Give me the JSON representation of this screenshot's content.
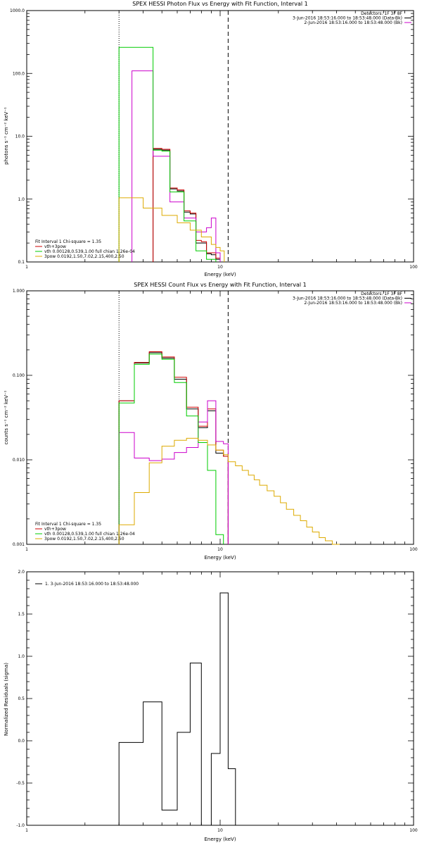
{
  "chart_data": [
    {
      "type": "line",
      "title": "SPEX HESSI Photon Flux vs Energy with Fit Function, Interval 1",
      "xlabel": "Energy (keV)",
      "ylabel": "photons s⁻¹ cm⁻² keV⁻¹",
      "xscale": "log",
      "yscale": "log",
      "xlim": [
        1,
        100
      ],
      "ylim": [
        0.1,
        1000
      ],
      "xticks": [
        {
          "v": 1,
          "label": "1"
        },
        {
          "v": 10,
          "label": "10"
        },
        {
          "v": 100,
          "label": "100"
        }
      ],
      "yticks": [
        {
          "v": 0.1,
          "label": "0.1"
        },
        {
          "v": 1,
          "label": "1.0"
        },
        {
          "v": 10,
          "label": "10.0"
        },
        {
          "v": 100,
          "label": "100.0"
        },
        {
          "v": 1000,
          "label": "1000.0"
        }
      ],
      "vlines": [
        {
          "x": 3.0,
          "style": "dotted"
        },
        {
          "x": 11.0,
          "style": "dashed"
        }
      ],
      "legend_top": [
        {
          "text": "Detectors: 1F 3F 8F",
          "color": ""
        },
        {
          "text": "3-Jun-2016 18:53:16.000 to 18:53:48.000 (Data-Bk)",
          "color": "#000000"
        },
        {
          "text": "2-Jun-2016 18:53:16.000 to 18:53:48.000 (Bk)",
          "color": "#cc00cc"
        }
      ],
      "legend_bottom": [
        {
          "text": "Fit Interval 1   Chi-square = 1.35",
          "color": ""
        },
        {
          "text": "vth+3pow",
          "color": "#cc0000"
        },
        {
          "text": "vth 0.00128,0.539,1.00   full chian 1.26e-04",
          "color": "#00cc00"
        },
        {
          "text": "3pow 0.0192,1.50,7.02,2.15,400,2.50",
          "color": "#ddaa00"
        }
      ],
      "edges": [
        3.0,
        3.5,
        4.0,
        4.5,
        5.0,
        5.5,
        6.0,
        6.5,
        7.0,
        7.5,
        8.0,
        8.5,
        9.0,
        9.5,
        10.0,
        10.5,
        11.0,
        11.5,
        12.0
      ],
      "series": [
        {
          "color": "#000000",
          "values": [
            null,
            null,
            null,
            6.2,
            6.0,
            1.45,
            1.35,
            0.62,
            0.58,
            0.2,
            0.2,
            0.135,
            0.13,
            0.11,
            null,
            null,
            null,
            null
          ]
        },
        {
          "color": "#cc0000",
          "values": [
            null,
            null,
            null,
            6.4,
            6.2,
            1.5,
            1.4,
            0.65,
            0.6,
            0.22,
            0.21,
            0.14,
            0.14,
            0.115,
            null,
            null,
            null,
            null
          ]
        },
        {
          "color": "#cc00cc",
          "values": [
            null,
            110,
            110,
            4.8,
            4.8,
            0.9,
            0.9,
            0.5,
            0.5,
            0.3,
            0.3,
            0.35,
            0.5,
            0.14,
            null,
            null,
            null,
            null
          ]
        },
        {
          "color": "#00cc00",
          "values": [
            260,
            260,
            260,
            6.0,
            5.8,
            1.3,
            1.3,
            0.45,
            0.45,
            0.15,
            0.15,
            0.11,
            0.11,
            null,
            null,
            null,
            null,
            null
          ]
        },
        {
          "color": "#ddaa00",
          "values": [
            1.05,
            1.05,
            0.72,
            0.72,
            0.55,
            0.55,
            0.42,
            0.42,
            0.32,
            0.32,
            0.25,
            0.25,
            0.19,
            0.17,
            0.15,
            null,
            null,
            null
          ]
        }
      ]
    },
    {
      "type": "line",
      "title": "SPEX HESSI Count Flux vs Energy with Fit Function, Interval 1",
      "xlabel": "Energy (keV)",
      "ylabel": "counts s⁻¹ cm⁻² keV⁻¹",
      "xscale": "log",
      "yscale": "log",
      "xlim": [
        1,
        100
      ],
      "ylim": [
        0.001,
        1
      ],
      "xticks": [
        {
          "v": 1,
          "label": "1"
        },
        {
          "v": 10,
          "label": "10"
        },
        {
          "v": 100,
          "label": "100"
        }
      ],
      "yticks": [
        {
          "v": 0.001,
          "label": "0.001"
        },
        {
          "v": 0.01,
          "label": "0.010"
        },
        {
          "v": 0.1,
          "label": "0.100"
        },
        {
          "v": 1,
          "label": "1.000"
        }
      ],
      "vlines": [
        {
          "x": 3.0,
          "style": "dotted"
        },
        {
          "x": 11.0,
          "style": "dashed"
        }
      ],
      "legend_top": [
        {
          "text": "Detectors: 1F 3F 8F",
          "color": ""
        },
        {
          "text": "3-Jun-2016 18:53:16.000 to 18:53:48.000 (Data-Bk)",
          "color": "#000000"
        },
        {
          "text": "2-Jun-2016 18:53:16.000 to 18:53:48.000 (Bk)",
          "color": "#cc00cc"
        }
      ],
      "legend_bottom": [
        {
          "text": "Fit Interval 1   Chi-square = 1.35",
          "color": ""
        },
        {
          "text": "vth+3pow",
          "color": "#cc0000"
        },
        {
          "text": "vth 0.00128,0.539,1.00   full chian 1.26e-04",
          "color": "#00cc00"
        },
        {
          "text": "3pow 0.0192,1.50,7.02,2.15,400,2.50",
          "color": "#ddaa00"
        }
      ],
      "edges": [
        3.0,
        3.6,
        4.3,
        5.0,
        5.8,
        6.7,
        7.7,
        8.6,
        9.5,
        10.4,
        11.0,
        12.0,
        13.0,
        14.0,
        15.0,
        16.0,
        17.5,
        19.0,
        20.5,
        22.0,
        24.0,
        26.0,
        28.0,
        30.0,
        32.5,
        35.0,
        38.0,
        41.5,
        45.0
      ],
      "series": [
        {
          "color": "#000000",
          "values": [
            0.05,
            0.14,
            0.185,
            0.16,
            0.09,
            0.04,
            0.024,
            0.038,
            0.012,
            0.011,
            null,
            null,
            null,
            null,
            null,
            null,
            null,
            null,
            null,
            null,
            null,
            null,
            null,
            null,
            null,
            null,
            null,
            null
          ]
        },
        {
          "color": "#cc0000",
          "values": [
            0.05,
            0.142,
            0.19,
            0.165,
            0.095,
            0.042,
            0.025,
            0.04,
            0.013,
            0.011,
            null,
            null,
            null,
            null,
            null,
            null,
            null,
            null,
            null,
            null,
            null,
            null,
            null,
            null,
            null,
            null,
            null,
            null
          ]
        },
        {
          "color": "#cc00cc",
          "values": [
            0.021,
            0.0105,
            0.0098,
            0.0102,
            0.0122,
            0.014,
            0.028,
            0.05,
            0.0165,
            0.0155,
            null,
            null,
            null,
            null,
            null,
            null,
            null,
            null,
            null,
            null,
            null,
            null,
            null,
            null,
            null,
            null,
            null,
            null
          ]
        },
        {
          "color": "#00cc00",
          "values": [
            0.047,
            0.135,
            0.178,
            0.155,
            0.082,
            0.033,
            0.016,
            0.0075,
            0.0013,
            null,
            null,
            null,
            null,
            null,
            null,
            null,
            null,
            null,
            null,
            null,
            null,
            null,
            null,
            null,
            null,
            null,
            null,
            null
          ]
        },
        {
          "color": "#ddaa00",
          "values": [
            0.0017,
            0.0041,
            0.0092,
            0.0145,
            0.017,
            0.018,
            0.017,
            0.015,
            0.013,
            0.0115,
            0.0095,
            0.0085,
            0.0075,
            0.0066,
            0.0058,
            0.005,
            0.0043,
            0.0037,
            0.0031,
            0.0026,
            0.0022,
            0.0019,
            0.0016,
            0.0014,
            0.0012,
            0.0011,
            0.001,
            null
          ]
        }
      ]
    },
    {
      "type": "line",
      "title": "",
      "xlabel": "Energy (keV)",
      "ylabel": "Normalized Residuals (sigma)",
      "xscale": "log",
      "yscale": "linear",
      "xlim": [
        1,
        100
      ],
      "ylim": [
        -1.0,
        2.0
      ],
      "xticks": [
        {
          "v": 1,
          "label": "1"
        },
        {
          "v": 10,
          "label": "10"
        },
        {
          "v": 100,
          "label": "100"
        }
      ],
      "yticks": [
        {
          "v": -1.0,
          "label": "-1.0"
        },
        {
          "v": -0.5,
          "label": "-0.5"
        },
        {
          "v": 0.0,
          "label": "0.0"
        },
        {
          "v": 0.5,
          "label": "0.5"
        },
        {
          "v": 1.0,
          "label": "1.0"
        },
        {
          "v": 1.5,
          "label": "1.5"
        },
        {
          "v": 2.0,
          "label": "2.0"
        }
      ],
      "vlines": [],
      "legend_top_left": [
        {
          "text": "1.  3-Jun-2016 18:53:16.000 to 18:53:48.000",
          "color": "#000000"
        }
      ],
      "edges": [
        3.0,
        4.0,
        5.0,
        6.0,
        7.0,
        8.0,
        9.0,
        10.0,
        11.0,
        12.0
      ],
      "series": [
        {
          "color": "#000000",
          "values": [
            -0.02,
            0.46,
            -0.82,
            0.1,
            0.92,
            -1.02,
            -0.15,
            1.75,
            -0.33
          ]
        }
      ]
    }
  ]
}
